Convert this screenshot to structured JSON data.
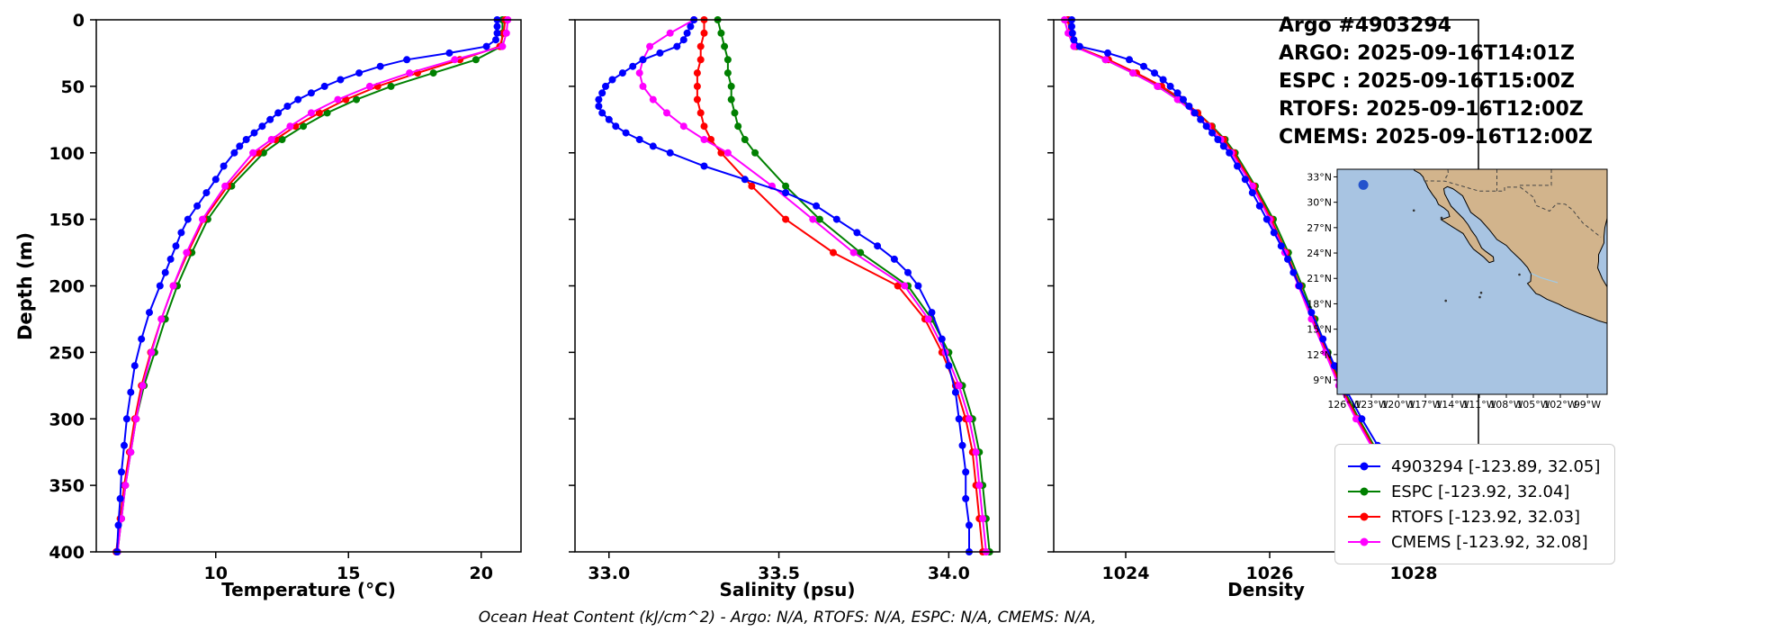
{
  "header": {
    "lines": [
      "Argo #4903294",
      "ARGO: 2025-09-16T14:01Z",
      "ESPC : 2025-09-16T15:00Z",
      "RTOFS: 2025-09-16T12:00Z",
      "CMEMS: 2025-09-16T12:00Z"
    ]
  },
  "footer": {
    "text": "Ocean Heat Content (kJ/cm^2) - Argo: N/A,  RTOFS: N/A,  ESPC: N/A,  CMEMS: N/A,"
  },
  "legend": {
    "entries": [
      {
        "label": "4903294 [-123.89, 32.05]",
        "color": "#0000ff"
      },
      {
        "label": "ESPC [-123.92, 32.04]",
        "color": "#008000"
      },
      {
        "label": "RTOFS [-123.92, 32.03]",
        "color": "#ff0000"
      },
      {
        "label": "CMEMS [-123.92, 32.08]",
        "color": "#ff00ff"
      }
    ]
  },
  "map": {
    "lat_ticks": [
      33,
      30,
      27,
      24,
      21,
      18,
      15,
      12,
      9
    ],
    "lat_tick_labels": [
      "33°N",
      "30°N",
      "27°N",
      "24°N",
      "21°N",
      "18°N",
      "15°N",
      "12°N",
      "9°N"
    ],
    "lon_ticks": [
      -126,
      -123,
      -120,
      -117,
      -114,
      -111,
      -108,
      -105,
      -102,
      -99
    ],
    "lon_tick_labels": [
      "126°W",
      "123°W",
      "120°W",
      "117°W",
      "114°W",
      "111°W",
      "108°W",
      "105°W",
      "102°W",
      "99°W"
    ],
    "float_position": {
      "lon": -123.89,
      "lat": 32.05
    },
    "marker_color": "#2453cc",
    "ocean_color": "#a8c4e2",
    "land_color": "#d2b48c"
  },
  "chart_data": {
    "type": "line",
    "orientation": "profile-depth",
    "ylabel": "Depth (m)",
    "depth_range": [
      0,
      400
    ],
    "depth_ticks": [
      0,
      50,
      100,
      150,
      200,
      250,
      300,
      350,
      400
    ],
    "grid": false,
    "panels": [
      {
        "key": "temperature",
        "xlabel": "Temperature (°C)",
        "xlim": [
          5.5,
          21.5
        ],
        "xticks": [
          10,
          15,
          20
        ],
        "xtick_labels": [
          "10",
          "15",
          "20"
        ]
      },
      {
        "key": "salinity",
        "xlabel": "Salinity (psu)",
        "xlim": [
          32.9,
          34.15
        ],
        "xticks": [
          33.0,
          33.5,
          34.0
        ],
        "xtick_labels": [
          "33.0",
          "33.5",
          "34.0"
        ]
      },
      {
        "key": "density",
        "xlabel": "Density",
        "xlim": [
          1023.0,
          1028.9
        ],
        "xticks": [
          1024,
          1026,
          1028
        ],
        "xtick_labels": [
          "1024",
          "1026",
          "1028"
        ]
      }
    ],
    "series": [
      {
        "name": "4903294",
        "color": "#0000ff",
        "depths": [
          0,
          5,
          10,
          15,
          20,
          25,
          30,
          35,
          40,
          45,
          50,
          55,
          60,
          65,
          70,
          75,
          80,
          85,
          90,
          95,
          100,
          110,
          120,
          130,
          140,
          150,
          160,
          170,
          180,
          190,
          200,
          220,
          240,
          260,
          280,
          300,
          320,
          340,
          360,
          380,
          400
        ],
        "temperature": [
          20.6,
          20.6,
          20.6,
          20.55,
          20.2,
          18.8,
          17.2,
          16.2,
          15.4,
          14.7,
          14.1,
          13.6,
          13.1,
          12.7,
          12.35,
          12.05,
          11.75,
          11.45,
          11.15,
          10.9,
          10.7,
          10.3,
          10.0,
          9.65,
          9.3,
          8.95,
          8.7,
          8.5,
          8.3,
          8.1,
          7.9,
          7.5,
          7.2,
          6.95,
          6.8,
          6.65,
          6.55,
          6.45,
          6.4,
          6.33,
          6.28
        ],
        "salinity": [
          33.25,
          33.24,
          33.23,
          33.22,
          33.2,
          33.15,
          33.1,
          33.07,
          33.04,
          33.01,
          32.99,
          32.98,
          32.97,
          32.97,
          32.98,
          33.0,
          33.02,
          33.05,
          33.09,
          33.13,
          33.18,
          33.28,
          33.4,
          33.52,
          33.61,
          33.67,
          33.73,
          33.79,
          33.84,
          33.88,
          33.91,
          33.95,
          33.98,
          34.0,
          34.02,
          34.03,
          34.04,
          34.05,
          34.05,
          34.06,
          34.06
        ],
        "density": [
          1023.25,
          1023.25,
          1023.26,
          1023.28,
          1023.36,
          1023.75,
          1024.05,
          1024.25,
          1024.4,
          1024.52,
          1024.62,
          1024.72,
          1024.8,
          1024.88,
          1024.96,
          1025.04,
          1025.12,
          1025.2,
          1025.28,
          1025.36,
          1025.44,
          1025.55,
          1025.66,
          1025.76,
          1025.86,
          1025.96,
          1026.06,
          1026.16,
          1026.25,
          1026.33,
          1026.41,
          1026.58,
          1026.74,
          1026.9,
          1027.08,
          1027.28,
          1027.5,
          1027.72,
          1027.95,
          1028.22,
          1028.55
        ]
      },
      {
        "name": "ESPC",
        "color": "#008000",
        "depths": [
          0,
          10,
          20,
          30,
          40,
          50,
          60,
          70,
          80,
          90,
          100,
          125,
          150,
          175,
          200,
          225,
          250,
          275,
          300,
          325,
          350,
          375,
          400
        ],
        "temperature": [
          20.8,
          20.8,
          20.75,
          19.8,
          18.2,
          16.6,
          15.3,
          14.2,
          13.3,
          12.5,
          11.8,
          10.6,
          9.7,
          9.1,
          8.55,
          8.1,
          7.7,
          7.3,
          7.0,
          6.8,
          6.6,
          6.45,
          6.3
        ],
        "salinity": [
          33.32,
          33.33,
          33.34,
          33.35,
          33.35,
          33.36,
          33.36,
          33.37,
          33.38,
          33.4,
          33.43,
          33.52,
          33.62,
          33.74,
          33.88,
          33.95,
          34.0,
          34.04,
          34.07,
          34.09,
          34.1,
          34.11,
          34.12
        ],
        "density": [
          1023.2,
          1023.25,
          1023.32,
          1023.72,
          1024.1,
          1024.45,
          1024.75,
          1025.0,
          1025.2,
          1025.38,
          1025.52,
          1025.8,
          1026.05,
          1026.26,
          1026.45,
          1026.63,
          1026.81,
          1027.0,
          1027.24,
          1027.5,
          1027.8,
          1028.15,
          1028.55
        ]
      },
      {
        "name": "RTOFS",
        "color": "#ff0000",
        "depths": [
          0,
          10,
          20,
          30,
          40,
          50,
          60,
          70,
          80,
          90,
          100,
          125,
          150,
          175,
          200,
          225,
          250,
          275,
          300,
          325,
          350,
          375,
          400
        ],
        "temperature": [
          20.9,
          20.85,
          20.7,
          19.2,
          17.6,
          16.1,
          14.9,
          13.9,
          13.0,
          12.25,
          11.6,
          10.45,
          9.55,
          8.95,
          8.4,
          7.95,
          7.55,
          7.2,
          6.95,
          6.75,
          6.55,
          6.4,
          6.25
        ],
        "salinity": [
          33.28,
          33.28,
          33.27,
          33.27,
          33.26,
          33.26,
          33.26,
          33.27,
          33.28,
          33.3,
          33.33,
          33.42,
          33.52,
          33.66,
          33.85,
          33.93,
          33.98,
          34.02,
          34.05,
          34.07,
          34.08,
          34.09,
          34.1
        ],
        "density": [
          1023.2,
          1023.22,
          1023.3,
          1023.76,
          1024.15,
          1024.5,
          1024.78,
          1025.0,
          1025.19,
          1025.36,
          1025.5,
          1025.78,
          1026.02,
          1026.23,
          1026.42,
          1026.6,
          1026.79,
          1026.98,
          1027.22,
          1027.48,
          1027.78,
          1028.12,
          1028.5
        ]
      },
      {
        "name": "CMEMS",
        "color": "#ff00ff",
        "depths": [
          0,
          10,
          20,
          30,
          40,
          50,
          60,
          70,
          80,
          90,
          100,
          125,
          150,
          175,
          200,
          225,
          250,
          275,
          300,
          325,
          350,
          375,
          400
        ],
        "temperature": [
          21.0,
          20.95,
          20.8,
          19.0,
          17.3,
          15.8,
          14.6,
          13.6,
          12.8,
          12.1,
          11.4,
          10.35,
          9.5,
          8.9,
          8.4,
          7.95,
          7.58,
          7.25,
          7.0,
          6.8,
          6.6,
          6.45,
          6.3
        ],
        "salinity": [
          33.25,
          33.18,
          33.12,
          33.1,
          33.09,
          33.1,
          33.13,
          33.17,
          33.22,
          33.28,
          33.35,
          33.48,
          33.6,
          33.72,
          33.87,
          33.94,
          33.99,
          34.03,
          34.06,
          34.08,
          34.09,
          34.1,
          34.11
        ],
        "density": [
          1023.15,
          1023.2,
          1023.28,
          1023.72,
          1024.1,
          1024.44,
          1024.72,
          1024.95,
          1025.14,
          1025.32,
          1025.47,
          1025.76,
          1026.0,
          1026.21,
          1026.4,
          1026.58,
          1026.77,
          1026.96,
          1027.2,
          1027.46,
          1027.76,
          1028.1,
          1028.48
        ]
      }
    ]
  }
}
